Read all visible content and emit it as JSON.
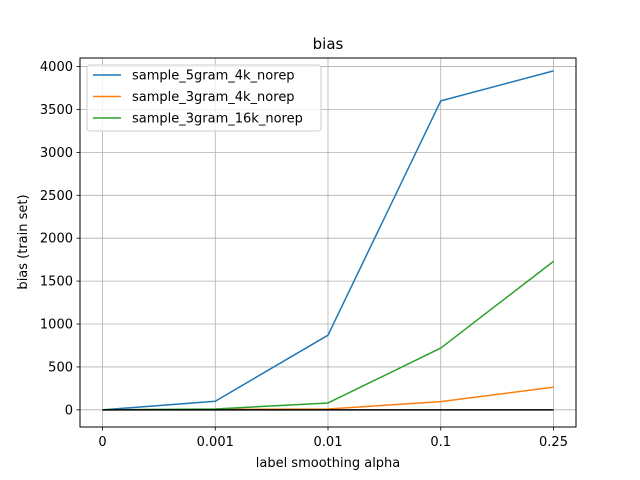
{
  "chart_data": {
    "type": "line",
    "title": "bias",
    "xlabel": "label smoothing alpha",
    "ylabel": "bias (train set)",
    "categories": [
      "0",
      "0.001",
      "0.01",
      "0.1",
      "0.25"
    ],
    "ylim": [
      -200,
      4100
    ],
    "yticks": [
      0,
      500,
      1000,
      1500,
      2000,
      2500,
      3000,
      3500,
      4000
    ],
    "grid": true,
    "legend_position": "top-left",
    "series": [
      {
        "name": "sample_5gram_4k_norep",
        "color": "#1f77b4",
        "values": [
          0,
          100,
          870,
          3600,
          3950
        ]
      },
      {
        "name": "sample_3gram_4k_norep",
        "color": "#ff7f0e",
        "values": [
          0,
          5,
          10,
          95,
          265
        ]
      },
      {
        "name": "sample_3gram_16k_norep",
        "color": "#2ca02c",
        "values": [
          0,
          10,
          80,
          720,
          1730
        ]
      }
    ],
    "baseline": {
      "color": "#000000",
      "values": [
        0,
        0,
        0,
        0,
        0
      ]
    }
  }
}
